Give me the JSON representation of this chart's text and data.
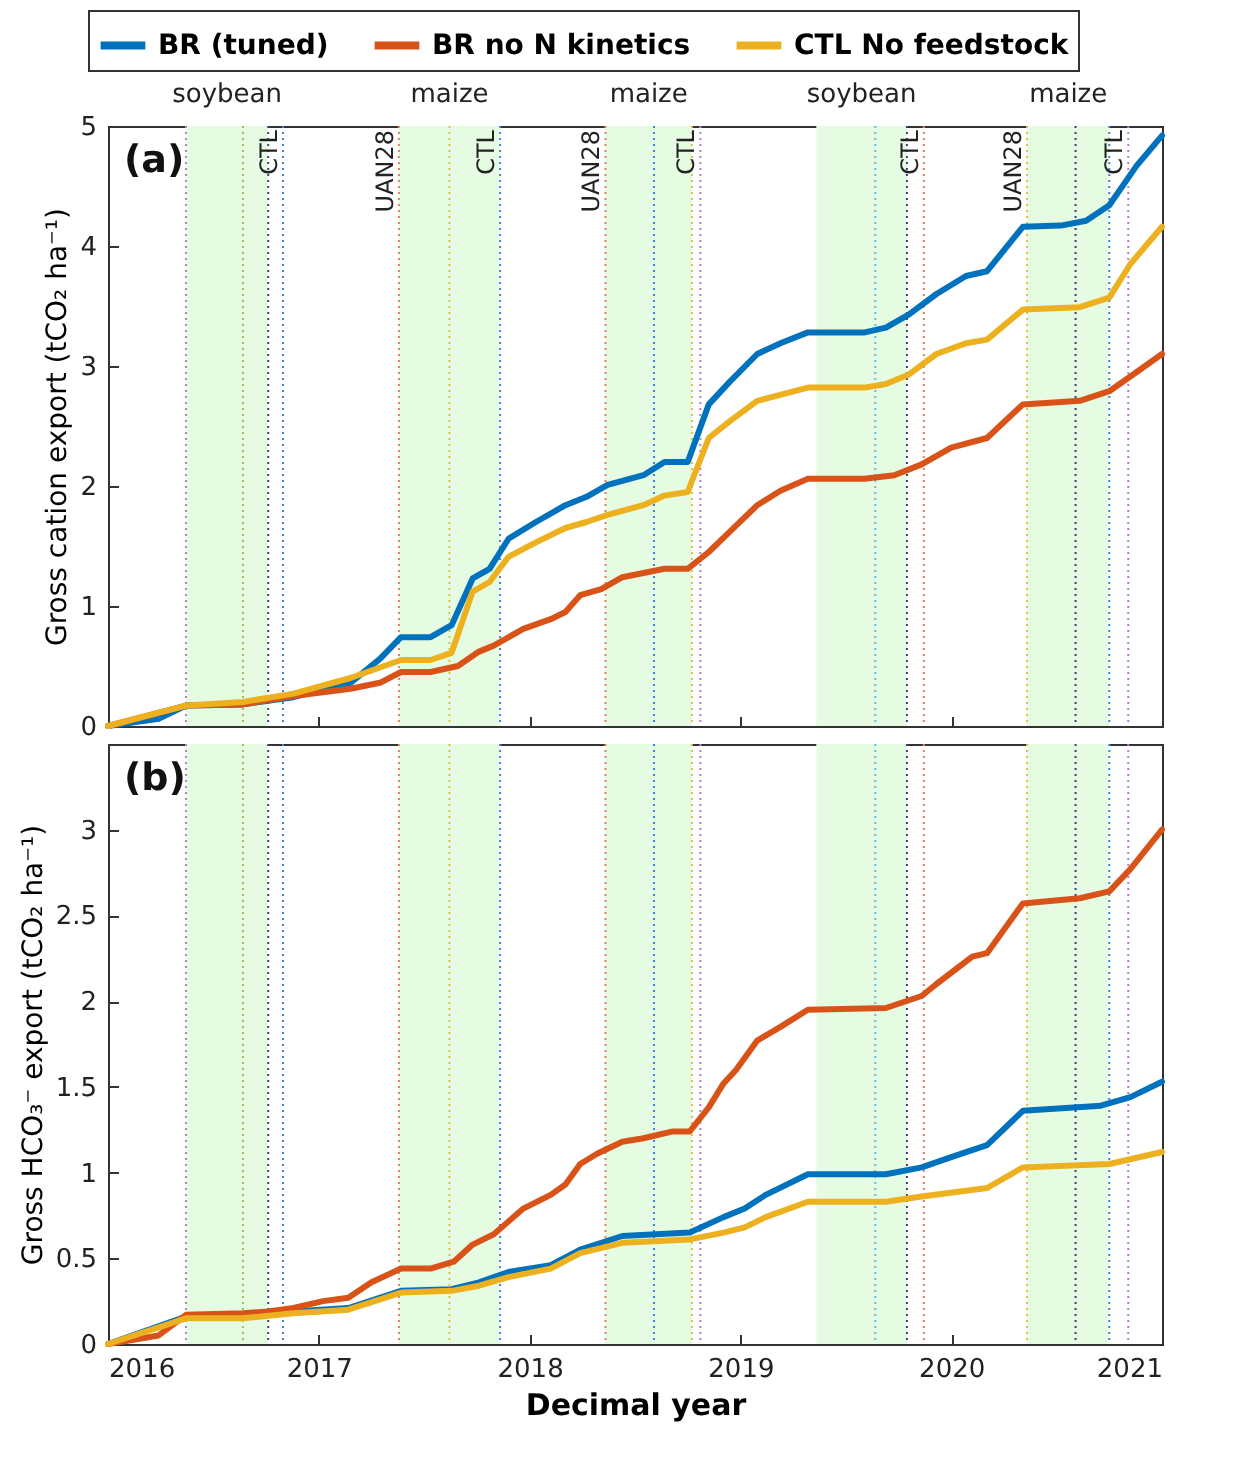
{
  "chart_data": [
    {
      "type": "line",
      "ylabel": "Gross cation export (tCO₂ ha⁻¹)",
      "annotations": [
        "(a)"
      ],
      "legend": "top",
      "tick_labels": "y",
      "xlim": [
        2016,
        2021
      ],
      "xticks": [
        2016,
        2017,
        2018,
        2019,
        2020,
        2021
      ],
      "ylim": [
        0,
        5
      ],
      "yticks": [
        0,
        1,
        2,
        3,
        4,
        5
      ],
      "bands": [
        {
          "axis": "x",
          "from": 2016.37,
          "to": 2016.76,
          "label": "soybean",
          "color": "#e5fce2"
        },
        {
          "axis": "x",
          "from": 2017.38,
          "to": 2017.86,
          "label": "maize",
          "color": "#e5fce2"
        },
        {
          "axis": "x",
          "from": 2018.36,
          "to": 2018.77,
          "label": "maize",
          "color": "#e5fce2"
        },
        {
          "axis": "x",
          "from": 2019.36,
          "to": 2019.79,
          "label": "soybean",
          "color": "#e5fce2"
        },
        {
          "axis": "x",
          "from": 2020.36,
          "to": 2020.75,
          "label": "maize",
          "color": "#e5fce2"
        }
      ],
      "ref_lines": [
        {
          "axis": "x",
          "value": 2016.37,
          "color": "#b07fd0",
          "line_style": "dotted"
        },
        {
          "axis": "x",
          "value": 2016.64,
          "color": "#a0c060",
          "line_style": "dotted"
        },
        {
          "axis": "x",
          "value": 2016.76,
          "color": "#404080",
          "line_style": "dotted"
        },
        {
          "axis": "x",
          "value": 2016.83,
          "color": "#4080e0",
          "line_style": "dotted",
          "label": "CTL"
        },
        {
          "axis": "x",
          "value": 2017.38,
          "color": "#e08060",
          "line_style": "dotted",
          "label": "UAN28"
        },
        {
          "axis": "x",
          "value": 2017.62,
          "color": "#e0c040",
          "line_style": "dotted"
        },
        {
          "axis": "x",
          "value": 2017.86,
          "color": "#4080e0",
          "line_style": "dotted",
          "label": "CTL"
        },
        {
          "axis": "x",
          "value": 2018.36,
          "color": "#e08060",
          "line_style": "dotted",
          "label": "UAN28"
        },
        {
          "axis": "x",
          "value": 2018.59,
          "color": "#4080e0",
          "line_style": "dotted"
        },
        {
          "axis": "x",
          "value": 2018.77,
          "color": "#e0c040",
          "line_style": "dotted"
        },
        {
          "axis": "x",
          "value": 2018.81,
          "color": "#b07fd0",
          "line_style": "dotted",
          "label": "CTL"
        },
        {
          "axis": "x",
          "value": 2019.64,
          "color": "#60c0e0",
          "line_style": "dotted"
        },
        {
          "axis": "x",
          "value": 2019.79,
          "color": "#404080",
          "line_style": "dotted"
        },
        {
          "axis": "x",
          "value": 2019.87,
          "color": "#e08060",
          "line_style": "dotted",
          "label": "CTL"
        },
        {
          "axis": "x",
          "value": 2020.36,
          "color": "#e0c040",
          "line_style": "dotted",
          "label": "UAN28"
        },
        {
          "axis": "x",
          "value": 2020.59,
          "color": "#404080",
          "line_style": "dotted"
        },
        {
          "axis": "x",
          "value": 2020.75,
          "color": "#4080e0",
          "line_style": "dotted"
        },
        {
          "axis": "x",
          "value": 2020.84,
          "color": "#b07fd0",
          "line_style": "dotted",
          "label": "CTL"
        }
      ],
      "series": [
        {
          "name": "BR (tuned)",
          "color": "#0072bd",
          "x": [
            2016,
            2016.24,
            2016.37,
            2016.64,
            2016.88,
            2017.15,
            2017.29,
            2017.39,
            2017.53,
            2017.63,
            2017.73,
            2017.81,
            2017.9,
            2018.03,
            2018.17,
            2018.27,
            2018.37,
            2018.54,
            2018.64,
            2018.75,
            2018.85,
            2018.95,
            2019.08,
            2019.19,
            2019.32,
            2019.59,
            2019.69,
            2019.8,
            2019.93,
            2020.07,
            2020.17,
            2020.34,
            2020.52,
            2020.64,
            2020.75,
            2020.88,
            2021
          ],
          "values": [
            0,
            0.06,
            0.17,
            0.18,
            0.24,
            0.36,
            0.56,
            0.74,
            0.74,
            0.84,
            1.23,
            1.31,
            1.56,
            1.7,
            1.84,
            1.91,
            2.01,
            2.09,
            2.2,
            2.2,
            2.68,
            2.87,
            3.1,
            3.19,
            3.28,
            3.28,
            3.32,
            3.43,
            3.6,
            3.75,
            3.79,
            4.16,
            4.17,
            4.21,
            4.34,
            4.67,
            4.92
          ]
        },
        {
          "name": "BR no N kinetics",
          "color": "#d95319",
          "x": [
            2016,
            2016.37,
            2016.64,
            2016.88,
            2017.15,
            2017.29,
            2017.39,
            2017.53,
            2017.66,
            2017.76,
            2017.83,
            2017.97,
            2018.1,
            2018.17,
            2018.24,
            2018.34,
            2018.44,
            2018.64,
            2018.75,
            2018.85,
            2018.95,
            2019.08,
            2019.19,
            2019.32,
            2019.59,
            2019.73,
            2019.86,
            2020,
            2020.17,
            2020.34,
            2020.61,
            2020.75,
            2020.88,
            2021
          ],
          "values": [
            0,
            0.17,
            0.18,
            0.25,
            0.31,
            0.36,
            0.45,
            0.45,
            0.5,
            0.62,
            0.67,
            0.81,
            0.89,
            0.95,
            1.09,
            1.14,
            1.24,
            1.31,
            1.31,
            1.45,
            1.62,
            1.84,
            1.96,
            2.06,
            2.06,
            2.09,
            2.18,
            2.32,
            2.4,
            2.68,
            2.71,
            2.79,
            2.95,
            3.1
          ]
        },
        {
          "name": "CTL No feedstock",
          "color": "#edb120",
          "x": [
            2016,
            2016.37,
            2016.64,
            2016.88,
            2017.15,
            2017.39,
            2017.53,
            2017.63,
            2017.73,
            2017.81,
            2017.9,
            2018.03,
            2018.17,
            2018.27,
            2018.37,
            2018.54,
            2018.64,
            2018.75,
            2018.85,
            2018.95,
            2019.08,
            2019.32,
            2019.59,
            2019.69,
            2019.8,
            2019.93,
            2020.07,
            2020.17,
            2020.34,
            2020.61,
            2020.75,
            2020.85,
            2021
          ],
          "values": [
            0,
            0.17,
            0.2,
            0.27,
            0.4,
            0.55,
            0.55,
            0.61,
            1.12,
            1.2,
            1.41,
            1.53,
            1.65,
            1.7,
            1.76,
            1.84,
            1.92,
            1.95,
            2.4,
            2.54,
            2.71,
            2.82,
            2.82,
            2.85,
            2.93,
            3.1,
            3.19,
            3.22,
            3.47,
            3.49,
            3.57,
            3.85,
            4.16
          ]
        }
      ]
    },
    {
      "type": "line",
      "xlabel": "Decimal year",
      "ylabel": "Gross HCO₃⁻ export (tCO₂ ha⁻¹)",
      "annotations": [
        "(b)"
      ],
      "xlim": [
        2016,
        2021
      ],
      "xticks": [
        2016,
        2017,
        2018,
        2019,
        2020,
        2021
      ],
      "ylim": [
        0,
        3.5
      ],
      "yticks": [
        0,
        0.5,
        1,
        1.5,
        2,
        2.5,
        3
      ],
      "bands": [
        {
          "axis": "x",
          "from": 2016.37,
          "to": 2016.76,
          "color": "#e5fce2"
        },
        {
          "axis": "x",
          "from": 2017.38,
          "to": 2017.86,
          "color": "#e5fce2"
        },
        {
          "axis": "x",
          "from": 2018.36,
          "to": 2018.77,
          "color": "#e5fce2"
        },
        {
          "axis": "x",
          "from": 2019.36,
          "to": 2019.79,
          "color": "#e5fce2"
        },
        {
          "axis": "x",
          "from": 2020.36,
          "to": 2020.75,
          "color": "#e5fce2"
        }
      ],
      "ref_lines": [
        {
          "axis": "x",
          "value": 2016.37,
          "color": "#b07fd0",
          "line_style": "dotted"
        },
        {
          "axis": "x",
          "value": 2016.64,
          "color": "#a0c060",
          "line_style": "dotted"
        },
        {
          "axis": "x",
          "value": 2016.76,
          "color": "#404080",
          "line_style": "dotted"
        },
        {
          "axis": "x",
          "value": 2016.83,
          "color": "#4080e0",
          "line_style": "dotted"
        },
        {
          "axis": "x",
          "value": 2017.38,
          "color": "#e08060",
          "line_style": "dotted"
        },
        {
          "axis": "x",
          "value": 2017.62,
          "color": "#e0c040",
          "line_style": "dotted"
        },
        {
          "axis": "x",
          "value": 2017.86,
          "color": "#4080e0",
          "line_style": "dotted"
        },
        {
          "axis": "x",
          "value": 2018.36,
          "color": "#e08060",
          "line_style": "dotted"
        },
        {
          "axis": "x",
          "value": 2018.59,
          "color": "#4080e0",
          "line_style": "dotted"
        },
        {
          "axis": "x",
          "value": 2018.77,
          "color": "#e0c040",
          "line_style": "dotted"
        },
        {
          "axis": "x",
          "value": 2018.81,
          "color": "#b07fd0",
          "line_style": "dotted"
        },
        {
          "axis": "x",
          "value": 2019.64,
          "color": "#60c0e0",
          "line_style": "dotted"
        },
        {
          "axis": "x",
          "value": 2019.79,
          "color": "#404080",
          "line_style": "dotted"
        },
        {
          "axis": "x",
          "value": 2019.87,
          "color": "#e08060",
          "line_style": "dotted"
        },
        {
          "axis": "x",
          "value": 2020.36,
          "color": "#e0c040",
          "line_style": "dotted"
        },
        {
          "axis": "x",
          "value": 2020.59,
          "color": "#404080",
          "line_style": "dotted"
        },
        {
          "axis": "x",
          "value": 2020.75,
          "color": "#4080e0",
          "line_style": "dotted"
        },
        {
          "axis": "x",
          "value": 2020.84,
          "color": "#b07fd0",
          "line_style": "dotted"
        }
      ],
      "series": [
        {
          "color": "#0072bd",
          "x": [
            2016,
            2016.37,
            2016.64,
            2016.88,
            2017.14,
            2017.39,
            2017.63,
            2017.76,
            2017.9,
            2018.1,
            2018.24,
            2018.44,
            2018.76,
            2018.92,
            2019.02,
            2019.12,
            2019.32,
            2019.69,
            2019.86,
            2020,
            2020.17,
            2020.34,
            2020.71,
            2020.85,
            2021
          ],
          "values": [
            0,
            0.16,
            0.16,
            0.19,
            0.21,
            0.31,
            0.32,
            0.36,
            0.42,
            0.46,
            0.55,
            0.63,
            0.65,
            0.74,
            0.79,
            0.87,
            0.99,
            0.99,
            1.03,
            1.09,
            1.16,
            1.36,
            1.39,
            1.44,
            1.53
          ]
        },
        {
          "color": "#d95319",
          "x": [
            2016,
            2016.24,
            2016.37,
            2016.64,
            2016.76,
            2016.88,
            2017.02,
            2017.14,
            2017.25,
            2017.39,
            2017.53,
            2017.64,
            2017.73,
            2017.83,
            2017.97,
            2018.1,
            2018.17,
            2018.24,
            2018.32,
            2018.44,
            2018.54,
            2018.68,
            2018.76,
            2018.85,
            2018.92,
            2018.98,
            2019.08,
            2019.19,
            2019.32,
            2019.69,
            2019.86,
            2019.93,
            2020.1,
            2020.17,
            2020.34,
            2020.61,
            2020.75,
            2020.85,
            2021
          ],
          "values": [
            0,
            0.05,
            0.17,
            0.18,
            0.19,
            0.21,
            0.25,
            0.27,
            0.36,
            0.44,
            0.44,
            0.48,
            0.58,
            0.64,
            0.79,
            0.87,
            0.93,
            1.05,
            1.11,
            1.18,
            1.2,
            1.24,
            1.24,
            1.38,
            1.52,
            1.6,
            1.77,
            1.85,
            1.95,
            1.96,
            2.03,
            2.1,
            2.26,
            2.28,
            2.57,
            2.6,
            2.64,
            2.77,
            3
          ]
        },
        {
          "color": "#edb120",
          "x": [
            2016,
            2016.37,
            2016.64,
            2016.88,
            2017.14,
            2017.39,
            2017.63,
            2017.76,
            2017.9,
            2018.1,
            2018.24,
            2018.44,
            2018.76,
            2018.92,
            2019.02,
            2019.12,
            2019.32,
            2019.69,
            2019.86,
            2020.17,
            2020.34,
            2020.75,
            2021
          ],
          "values": [
            0,
            0.15,
            0.15,
            0.18,
            0.2,
            0.3,
            0.31,
            0.34,
            0.39,
            0.44,
            0.53,
            0.59,
            0.61,
            0.65,
            0.68,
            0.74,
            0.83,
            0.83,
            0.86,
            0.91,
            1.03,
            1.05,
            1.12
          ]
        }
      ]
    }
  ]
}
